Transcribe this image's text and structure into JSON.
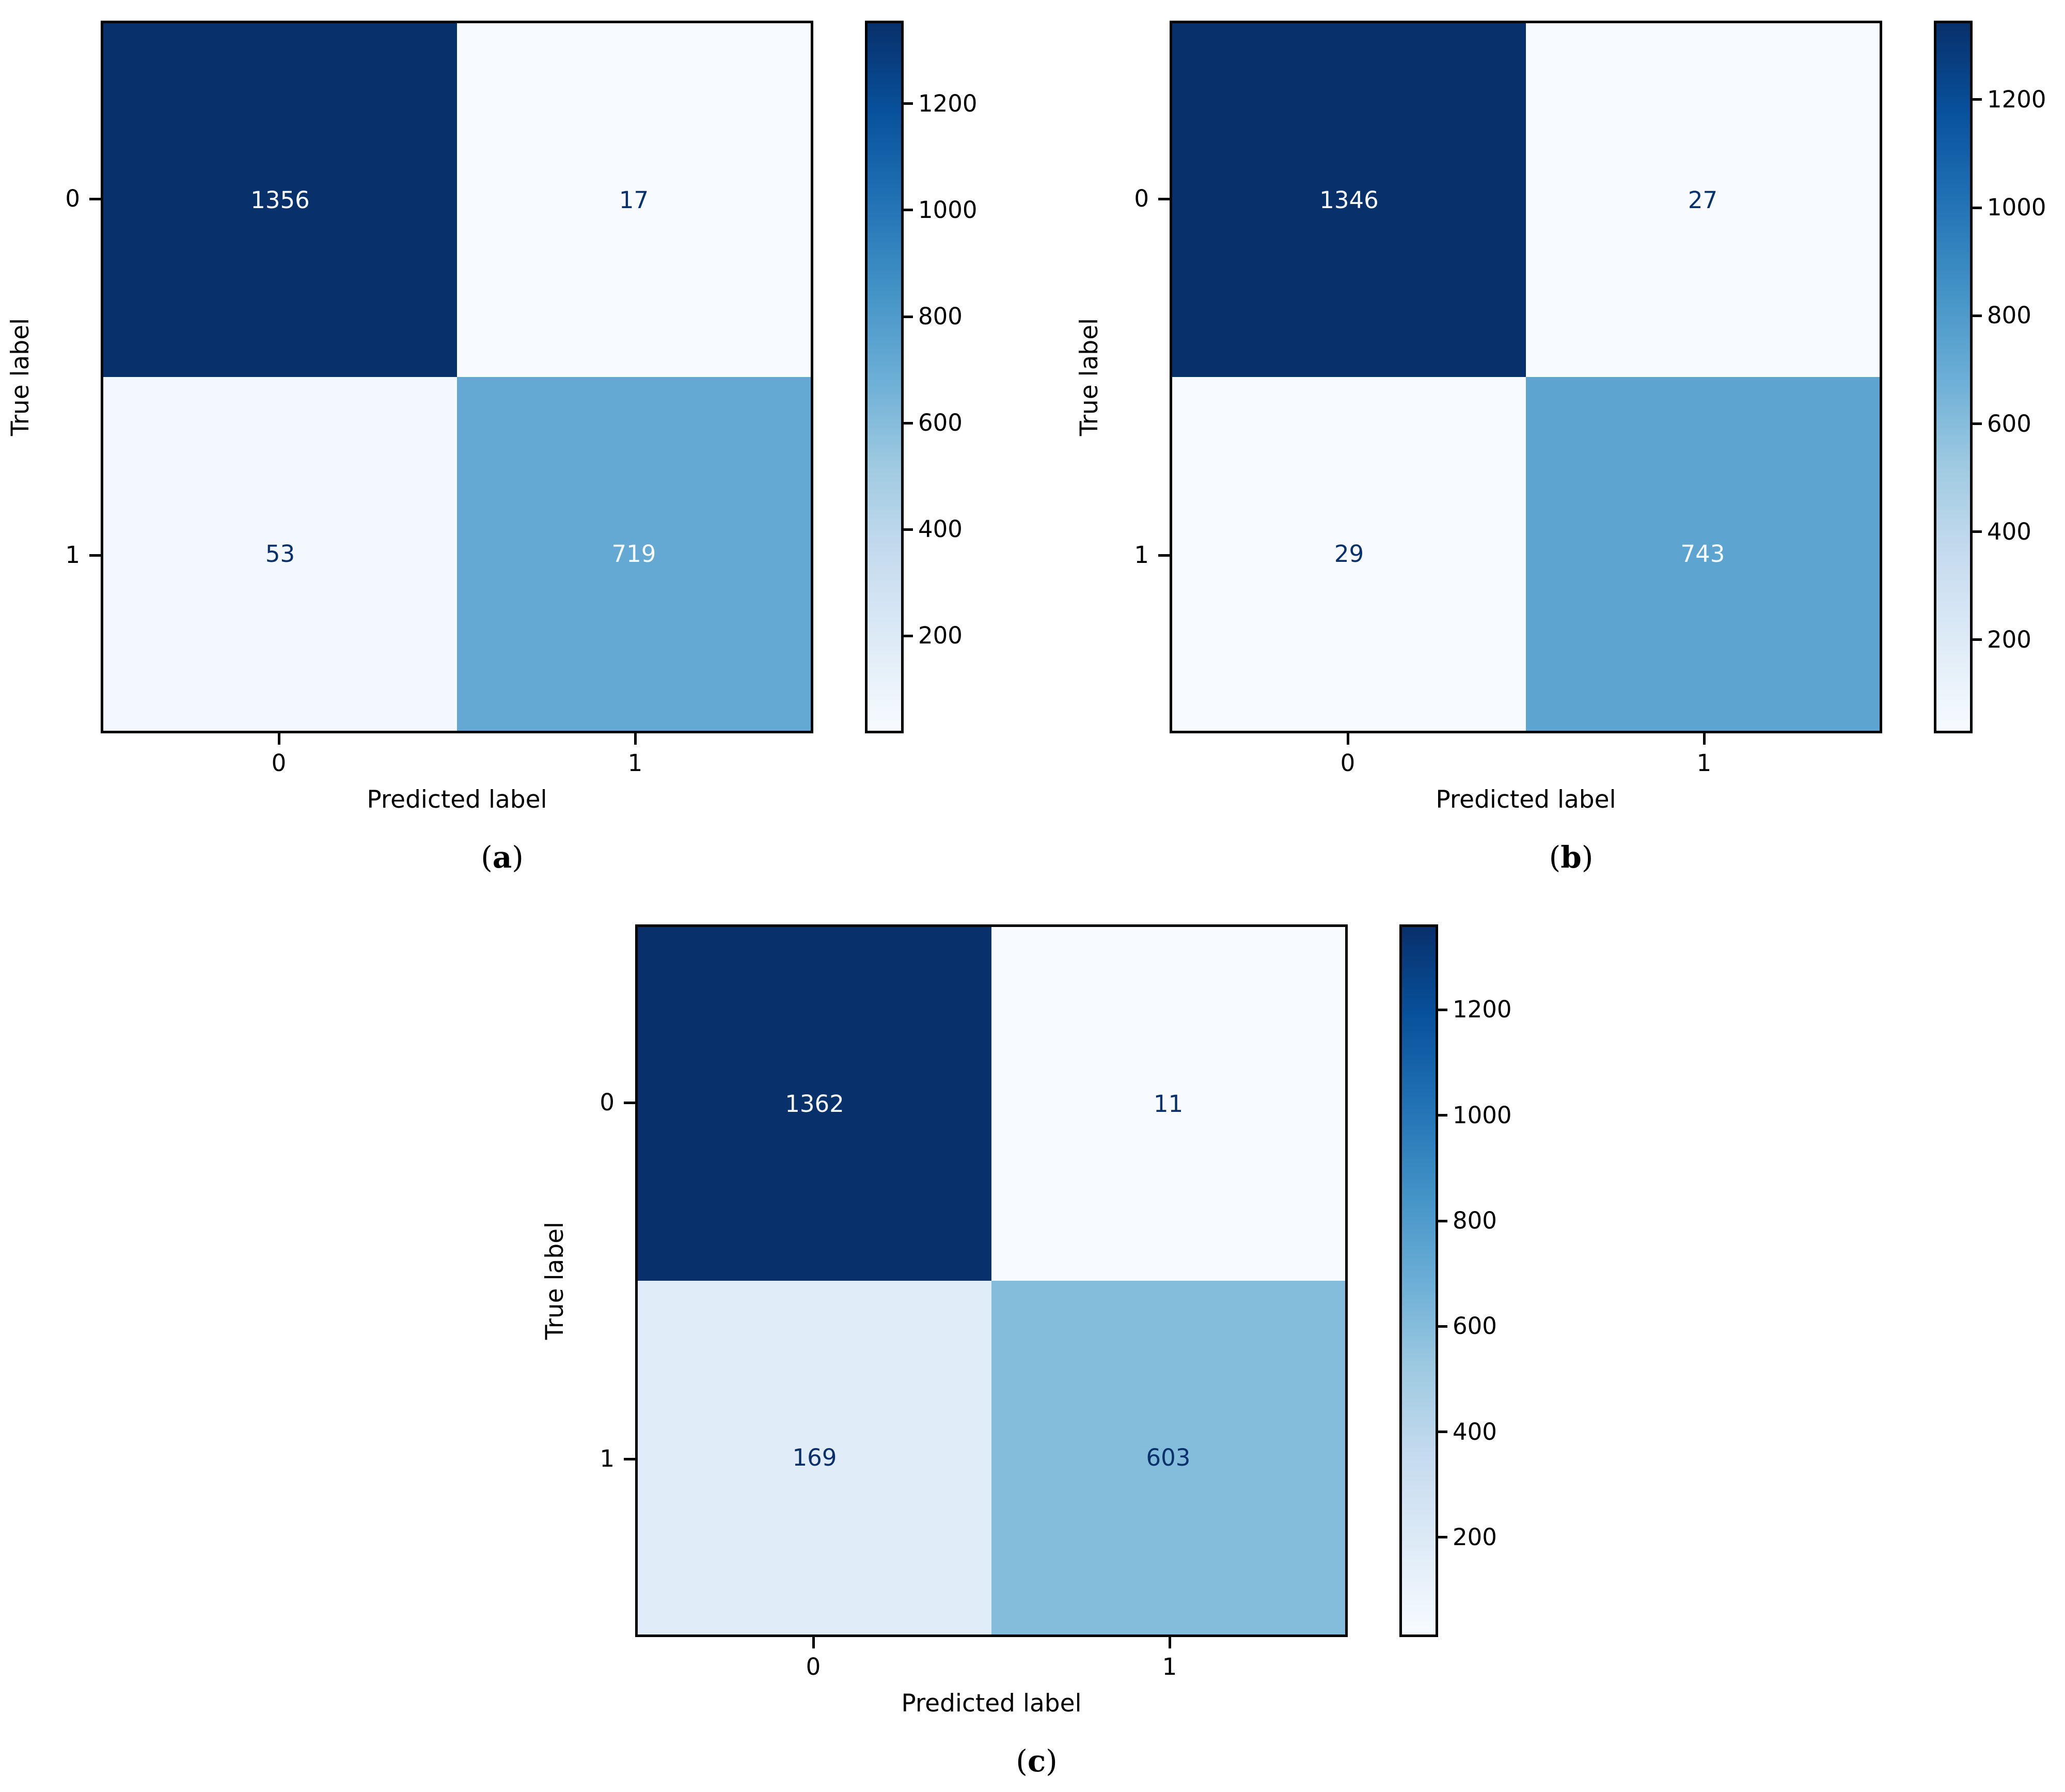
{
  "chart_data": [
    {
      "type": "heatmap",
      "subfigure": "a",
      "xlabel": "Predicted label",
      "ylabel": "True label",
      "x_tick_labels": [
        "0",
        "1"
      ],
      "y_tick_labels": [
        "0",
        "1"
      ],
      "values": [
        [
          1356,
          17
        ],
        [
          53,
          719
        ]
      ],
      "vmin": 17,
      "vmax": 1356,
      "colorbar_ticks": [
        1200,
        1000,
        800,
        600,
        400,
        200
      ],
      "colormap": "Blues",
      "legend_position": "right-colorbar",
      "grid": false
    },
    {
      "type": "heatmap",
      "subfigure": "b",
      "xlabel": "Predicted label",
      "ylabel": "True label",
      "x_tick_labels": [
        "0",
        "1"
      ],
      "y_tick_labels": [
        "0",
        "1"
      ],
      "values": [
        [
          1346,
          27
        ],
        [
          29,
          743
        ]
      ],
      "vmin": 27,
      "vmax": 1346,
      "colorbar_ticks": [
        1200,
        1000,
        800,
        600,
        400,
        200
      ],
      "colormap": "Blues",
      "legend_position": "right-colorbar",
      "grid": false
    },
    {
      "type": "heatmap",
      "subfigure": "c",
      "xlabel": "Predicted label",
      "ylabel": "True label",
      "x_tick_labels": [
        "0",
        "1"
      ],
      "y_tick_labels": [
        "0",
        "1"
      ],
      "values": [
        [
          1362,
          11
        ],
        [
          169,
          603
        ]
      ],
      "vmin": 11,
      "vmax": 1362,
      "colorbar_ticks": [
        1200,
        1000,
        800,
        600,
        400,
        200
      ],
      "colormap": "Blues",
      "legend_position": "right-colorbar",
      "grid": false
    }
  ],
  "style": {
    "background": "#ffffff",
    "axis_color": "#000000",
    "annotation_light": "#f7fbff",
    "annotation_dark": "#08306b",
    "colormap_stops": [
      {
        "t": 0.0,
        "color": "#f7fbff"
      },
      {
        "t": 0.125,
        "color": "#deebf7"
      },
      {
        "t": 0.25,
        "color": "#c6dbef"
      },
      {
        "t": 0.375,
        "color": "#9ecae1"
      },
      {
        "t": 0.5,
        "color": "#6baed6"
      },
      {
        "t": 0.625,
        "color": "#4292c6"
      },
      {
        "t": 0.75,
        "color": "#2171b5"
      },
      {
        "t": 0.875,
        "color": "#08519c"
      },
      {
        "t": 1.0,
        "color": "#08306b"
      }
    ]
  }
}
